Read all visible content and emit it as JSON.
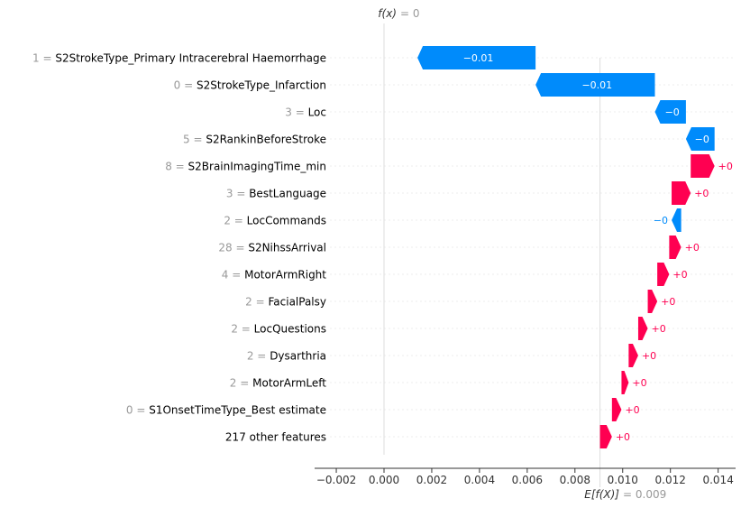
{
  "chart_data": {
    "type": "waterfall",
    "fx_label": "f(x)",
    "fx_value": "0",
    "ex_label": "E[f(X)]",
    "ex_value": "0.009",
    "base_value": 0.00905,
    "final_value": 0.0,
    "xlim": [
      -0.0022,
      0.0147
    ],
    "xticks": [
      -0.002,
      0.0,
      0.002,
      0.004,
      0.006,
      0.008,
      0.01,
      0.012,
      0.014
    ],
    "xtick_labels": [
      "−0.002",
      "0.000",
      "0.002",
      "0.004",
      "0.006",
      "0.008",
      "0.010",
      "0.012",
      "0.014"
    ],
    "positive_color": "#ff0051",
    "negative_color": "#008bfb",
    "features": [
      {
        "value": "1 =",
        "name": "S2StrokeType_Primary Intracerebral Haemorrhage",
        "contribution": -0.00495,
        "label": "−0.01"
      },
      {
        "value": "0 =",
        "name": "S2StrokeType_Infarction",
        "contribution": -0.005,
        "label": "−0.01"
      },
      {
        "value": "3 =",
        "name": "Loc",
        "contribution": -0.0013,
        "label": "−0"
      },
      {
        "value": "5 =",
        "name": "S2RankinBeforeStroke",
        "contribution": -0.0012,
        "label": "−0"
      },
      {
        "value": "8 =",
        "name": "S2BrainImagingTime_min",
        "contribution": 0.001,
        "label": "+0"
      },
      {
        "value": "3 =",
        "name": "BestLanguage",
        "contribution": 0.0008,
        "label": "+0"
      },
      {
        "value": "2 =",
        "name": "LocCommands",
        "contribution": -0.0004,
        "label": "−0"
      },
      {
        "value": "28 =",
        "name": "S2NihssArrival",
        "contribution": 0.0005,
        "label": "+0"
      },
      {
        "value": "4 =",
        "name": "MotorArmRight",
        "contribution": 0.0005,
        "label": "+0"
      },
      {
        "value": "2 =",
        "name": "FacialPalsy",
        "contribution": 0.0004,
        "label": "+0"
      },
      {
        "value": "2 =",
        "name": "LocQuestions",
        "contribution": 0.0004,
        "label": "+0"
      },
      {
        "value": "2 =",
        "name": "Dysarthria",
        "contribution": 0.0004,
        "label": "+0"
      },
      {
        "value": "2 =",
        "name": "MotorArmLeft",
        "contribution": 0.0003,
        "label": "+0"
      },
      {
        "value": "0 =",
        "name": "S1OnsetTimeType_Best estimate",
        "contribution": 0.0004,
        "label": "+0"
      },
      {
        "value": "",
        "name": "217 other features",
        "contribution": 0.0005,
        "label": "+0"
      }
    ]
  }
}
